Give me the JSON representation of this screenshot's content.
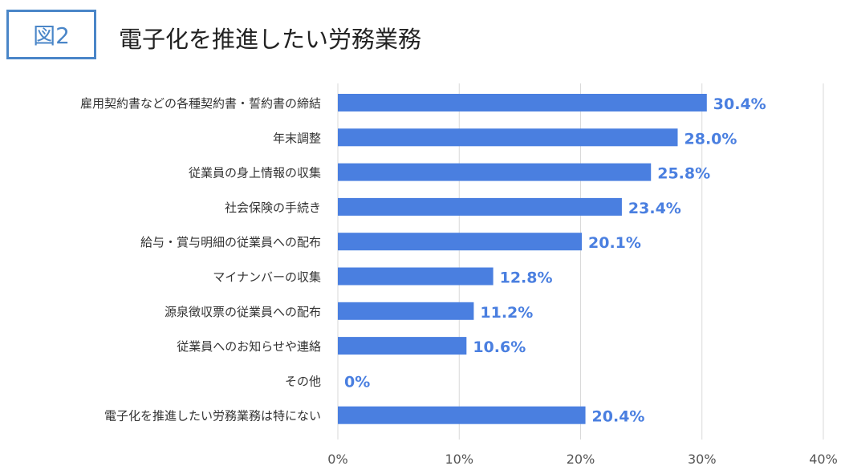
{
  "figure_label": "図2",
  "title": "電子化を推進したい労務業務",
  "colors": {
    "bar": "#4a7fe0",
    "value_label": "#4a7fe0",
    "accent": "#4a86c8",
    "grid": "#d9d9d9"
  },
  "chart_data": {
    "type": "bar",
    "orientation": "horizontal",
    "title": "電子化を推進したい労務業務",
    "categories": [
      "雇用契約書などの各種契約書・誓約書の締結",
      "年末調整",
      "従業員の身上情報の収集",
      "社会保険の手続き",
      "給与・賞与明細の従業員への配布",
      "マイナンバーの収集",
      "源泉徴収票の従業員への配布",
      "従業員へのお知らせや連絡",
      "その他",
      "電子化を推進したい労務業務は特にない"
    ],
    "values": [
      30.4,
      28.0,
      25.8,
      23.4,
      20.1,
      12.8,
      11.2,
      10.6,
      0,
      20.4
    ],
    "value_labels": [
      "30.4%",
      "28.0%",
      "25.8%",
      "23.4%",
      "20.1%",
      "12.8%",
      "11.2%",
      "10.6%",
      "0%",
      "20.4%"
    ],
    "xlim": [
      0,
      40
    ],
    "x_ticks": [
      0,
      10,
      20,
      30,
      40
    ],
    "x_tick_labels": [
      "0%",
      "10%",
      "20%",
      "30%",
      "40%"
    ],
    "grid": "vertical",
    "legend": "none"
  }
}
